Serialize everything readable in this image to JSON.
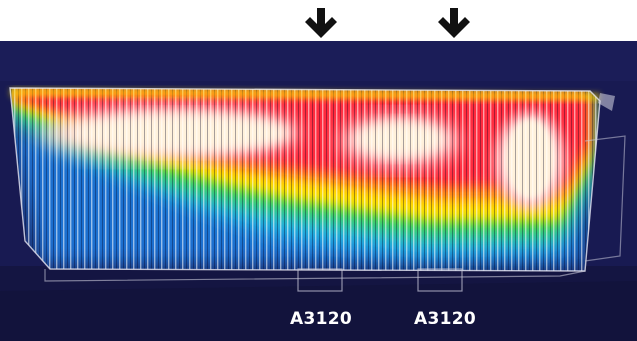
{
  "labels": {
    "left": "A3120",
    "right": "A3120"
  },
  "icons": {
    "left_arrow": "arrow-down-icon",
    "right_arrow": "arrow-down-icon"
  },
  "colors": {
    "background": "#181a52",
    "hot": "#fff2dc",
    "warm": "#ff2a3c",
    "mid": "#ffd800",
    "cool": "#20a8e0",
    "cold": "#181a52"
  }
}
